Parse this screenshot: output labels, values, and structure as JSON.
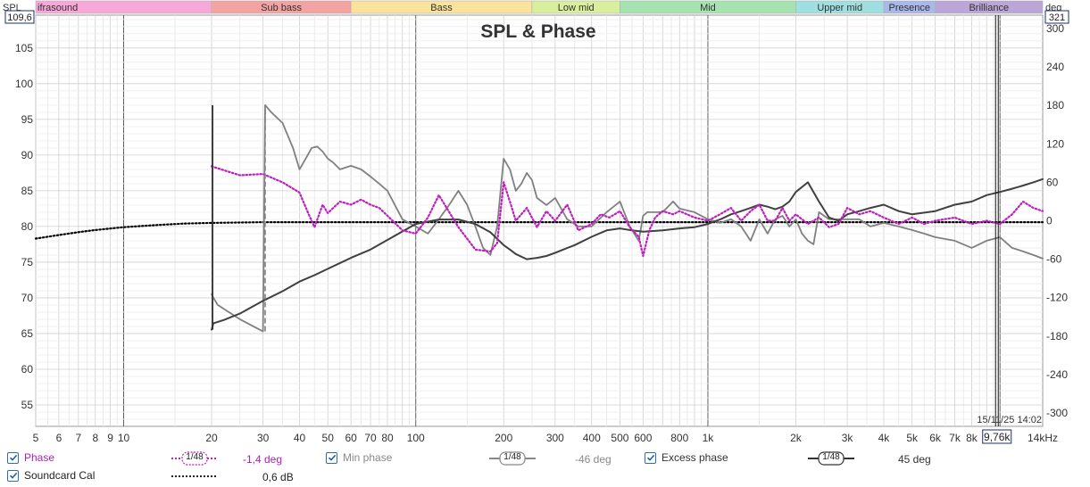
{
  "chart_data": {
    "type": "line",
    "title": "SPL & Phase",
    "xscale": "log",
    "xlim": [
      5,
      14000
    ],
    "ylim_left": [
      52,
      109.6
    ],
    "ylim_right": [
      -321,
      321
    ],
    "ylabel_left": "SPL",
    "ylabel_right": "deg",
    "y_left_max_label": "109,6",
    "y_right_max_label": "321",
    "x_ticks": [
      {
        "v": 5,
        "l": "5"
      },
      {
        "v": 6,
        "l": "6"
      },
      {
        "v": 7,
        "l": "7"
      },
      {
        "v": 8,
        "l": "8"
      },
      {
        "v": 9,
        "l": "9"
      },
      {
        "v": 10,
        "l": "10"
      },
      {
        "v": 20,
        "l": "20"
      },
      {
        "v": 30,
        "l": "30"
      },
      {
        "v": 40,
        "l": "40"
      },
      {
        "v": 50,
        "l": "50"
      },
      {
        "v": 60,
        "l": "60"
      },
      {
        "v": 70,
        "l": "70"
      },
      {
        "v": 80,
        "l": "80"
      },
      {
        "v": 100,
        "l": "100"
      },
      {
        "v": 200,
        "l": "200"
      },
      {
        "v": 300,
        "l": "300"
      },
      {
        "v": 400,
        "l": "400"
      },
      {
        "v": 500,
        "l": "500"
      },
      {
        "v": 600,
        "l": "600"
      },
      {
        "v": 800,
        "l": "800"
      },
      {
        "v": 1000,
        "l": "1k"
      },
      {
        "v": 2000,
        "l": "2k"
      },
      {
        "v": 3000,
        "l": "3k"
      },
      {
        "v": 4000,
        "l": "4k"
      },
      {
        "v": 5000,
        "l": "5k"
      },
      {
        "v": 6000,
        "l": "6k"
      },
      {
        "v": 7000,
        "l": "7k"
      },
      {
        "v": 8000,
        "l": "8k"
      },
      {
        "v": 14000,
        "l": "14kHz"
      }
    ],
    "y_left_ticks": [
      55,
      60,
      65,
      70,
      75,
      80,
      85,
      90,
      95,
      100,
      105
    ],
    "y_right_ticks": [
      300,
      240,
      180,
      120,
      60,
      0,
      -60,
      -120,
      -180,
      -240,
      -300
    ],
    "bands": [
      {
        "name": "ifrasound",
        "from": 5,
        "to": 20,
        "color": "#f7a8d8"
      },
      {
        "name": "Sub bass",
        "from": 20,
        "to": 60,
        "color": "#f4a3a3"
      },
      {
        "name": "Bass",
        "from": 60,
        "to": 250,
        "color": "#fbe39b"
      },
      {
        "name": "Low mid",
        "from": 250,
        "to": 500,
        "color": "#d9ef9e"
      },
      {
        "name": "Mid",
        "from": 500,
        "to": 2000,
        "color": "#a6e3b0"
      },
      {
        "name": "Upper mid",
        "from": 2000,
        "to": 4000,
        "color": "#9fdfe0"
      },
      {
        "name": "Presence",
        "from": 4000,
        "to": 6000,
        "color": "#aab7ea"
      },
      {
        "name": "Brilliance",
        "from": 6000,
        "to": 14000,
        "color": "#bba6d8"
      }
    ],
    "cursor": {
      "x": 9760,
      "label": "9,76k"
    },
    "timestamp": "15/11/25 14:02",
    "series": [
      {
        "name": "Phase",
        "axis": "right",
        "color": "#c01fc0",
        "style": "dotted",
        "x": [
          20,
          25,
          30,
          35,
          40,
          43,
          45,
          48,
          50,
          55,
          60,
          65,
          70,
          75,
          80,
          90,
          100,
          110,
          120,
          140,
          160,
          180,
          190,
          200,
          210,
          220,
          240,
          260,
          280,
          300,
          330,
          360,
          400,
          430,
          460,
          500,
          540,
          580,
          600,
          630,
          660,
          700,
          760,
          800,
          900,
          1000,
          1100,
          1200,
          1300,
          1400,
          1500,
          1600,
          1700,
          1800,
          1900,
          2000,
          2200,
          2400,
          2600,
          2800,
          3000,
          3300,
          3600,
          4000,
          4500,
          5000,
          5500,
          6000,
          7000,
          8000,
          9000,
          10000,
          11000,
          12000,
          13000,
          14000
        ],
        "y": [
          85,
          71,
          73,
          60,
          44,
          10,
          -10,
          25,
          12,
          30,
          25,
          33,
          25,
          20,
          8,
          -15,
          -20,
          5,
          40,
          -10,
          -45,
          -48,
          -35,
          60,
          30,
          0,
          20,
          -10,
          15,
          0,
          25,
          -15,
          -5,
          10,
          5,
          15,
          -10,
          -25,
          -55,
          -15,
          5,
          15,
          10,
          15,
          5,
          0,
          10,
          20,
          0,
          15,
          25,
          0,
          0,
          20,
          0,
          10,
          -5,
          5,
          -10,
          -5,
          20,
          10,
          15,
          5,
          -5,
          5,
          -5,
          0,
          5,
          -5,
          0,
          -5,
          10,
          30,
          20,
          15
        ]
      },
      {
        "name": "Min phase",
        "axis": "left",
        "color": "#808080",
        "style": "solid",
        "x": [
          20,
          20.3,
          21,
          25,
          30,
          30.5,
          32,
          35,
          38,
          40,
          42,
          44,
          46,
          48,
          50,
          52,
          55,
          60,
          65,
          70,
          75,
          80,
          90,
          100,
          110,
          120,
          130,
          140,
          150,
          160,
          170,
          180,
          190,
          200,
          210,
          220,
          230,
          240,
          250,
          260,
          280,
          300,
          330,
          360,
          400,
          450,
          500,
          540,
          580,
          600,
          620,
          650,
          700,
          760,
          800,
          900,
          1000,
          1100,
          1200,
          1300,
          1400,
          1500,
          1600,
          1700,
          1800,
          1900,
          2000,
          2100,
          2200,
          2300,
          2400,
          2600,
          2800,
          3000,
          3300,
          3600,
          4000,
          4500,
          5000,
          5500,
          6000,
          7000,
          8000,
          9000,
          10000,
          11000,
          12000,
          13000,
          14000
        ],
        "y": [
          70.5,
          70,
          69,
          67,
          65.3,
          97,
          96,
          94.5,
          91,
          88,
          89.5,
          91,
          91.2,
          90.5,
          89.5,
          89,
          88,
          88.5,
          88,
          87,
          86,
          85,
          81,
          80,
          79,
          81,
          83,
          85,
          83,
          80,
          77,
          76,
          80,
          89.5,
          88,
          85,
          86,
          87.5,
          86.5,
          84,
          83,
          84,
          81,
          80,
          80,
          82,
          83.5,
          80,
          78,
          81.5,
          82,
          82,
          82,
          83.5,
          82.5,
          82,
          81,
          80.5,
          81,
          80,
          78,
          81,
          79,
          81,
          81.5,
          80,
          81,
          79,
          78,
          77.5,
          82,
          81,
          81,
          81,
          81,
          80,
          80.5,
          80,
          79.5,
          79,
          78.5,
          78,
          77,
          78,
          78.5,
          77,
          76.5,
          76,
          75.5
        ]
      },
      {
        "name": "Excess phase",
        "axis": "right",
        "color": "#404040",
        "style": "solid",
        "x": [
          20,
          20.3,
          22,
          25,
          30,
          35,
          40,
          45,
          50,
          60,
          70,
          80,
          100,
          120,
          140,
          160,
          180,
          200,
          210,
          220,
          240,
          260,
          280,
          300,
          320,
          350,
          400,
          450,
          500,
          550,
          600,
          650,
          700,
          800,
          900,
          1000,
          1100,
          1200,
          1300,
          1400,
          1500,
          1600,
          1700,
          1800,
          1900,
          2000,
          2200,
          2400,
          2600,
          2800,
          3000,
          3300,
          3600,
          4000,
          4500,
          5000,
          6000,
          7000,
          8000,
          9000,
          10000,
          11000,
          12000,
          13000,
          14000
        ],
        "y": [
          -170,
          -160,
          -155,
          -145,
          -125,
          -110,
          -95,
          -85,
          -75,
          -58,
          -45,
          -30,
          -5,
          2,
          2,
          -5,
          -18,
          -38,
          -45,
          -52,
          -60,
          -58,
          -55,
          -50,
          -45,
          -38,
          -25,
          -15,
          -12,
          -15,
          -17,
          -16,
          -15,
          -12,
          -10,
          -5,
          2,
          10,
          15,
          20,
          25,
          22,
          18,
          22,
          30,
          45,
          60,
          30,
          5,
          0,
          10,
          15,
          20,
          25,
          15,
          10,
          15,
          25,
          30,
          40,
          45,
          50,
          55,
          60,
          65
        ]
      },
      {
        "name": "Soundcard Cal",
        "axis": "left",
        "color": "#000000",
        "style": "dotted",
        "x": [
          5,
          6,
          7,
          8,
          10,
          13,
          16,
          20,
          30,
          50,
          100,
          200,
          500,
          1000,
          3000,
          14000
        ],
        "y": [
          78.3,
          78.8,
          79.2,
          79.5,
          79.9,
          80.2,
          80.4,
          80.5,
          80.6,
          80.6,
          80.6,
          80.6,
          80.6,
          80.6,
          80.6,
          80.6
        ]
      }
    ]
  },
  "legend": {
    "row1": [
      {
        "label": "Phase",
        "smoothing": "1/48",
        "value": "-1,4 deg",
        "color": "#b020b0"
      },
      {
        "label": "Min phase",
        "smoothing": "1/48",
        "value": "-46 deg",
        "color": "#888888"
      },
      {
        "label": "Excess phase",
        "smoothing": "1/48",
        "value": "45 deg",
        "color": "#333333"
      }
    ],
    "row2": [
      {
        "label": "Soundcard Cal",
        "value": "0,6 dB",
        "color": "#222222"
      }
    ]
  }
}
